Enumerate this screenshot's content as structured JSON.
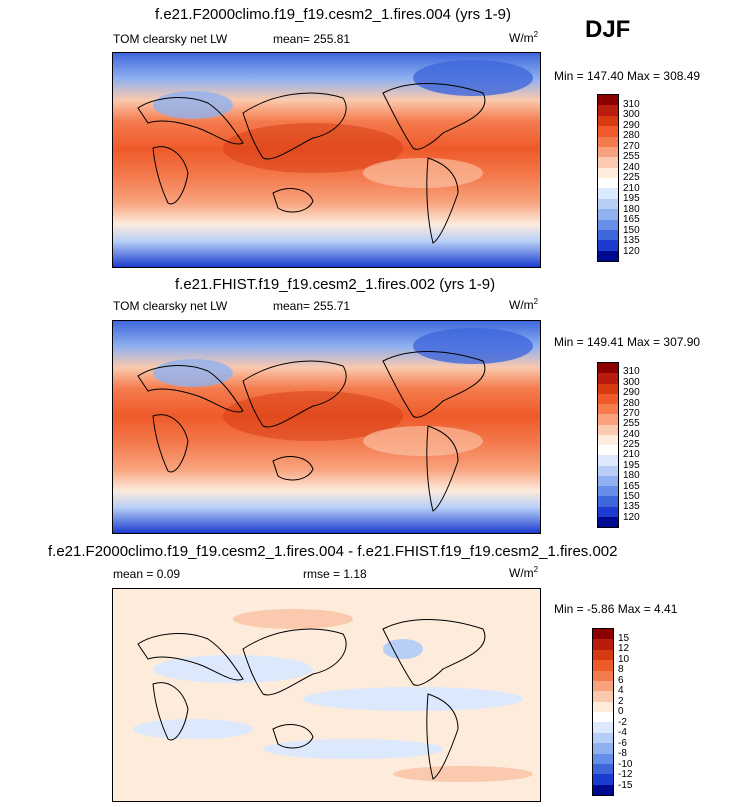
{
  "season": "DJF",
  "panels": [
    {
      "title": "f.e21.F2000climo.f19_f19.cesm2_1.fires.004 (yrs 1-9)",
      "left_label": "TOM clearsky net LW",
      "center_label": "mean= 255.81",
      "right_label": "W/m",
      "units_sup": "2",
      "minmax": "Min = 147.40 Max = 308.49"
    },
    {
      "title": "f.e21.FHIST.f19_f19.cesm2_1.fires.002 (yrs 1-9)",
      "left_label": "TOM clearsky net LW",
      "center_label": "mean= 255.71",
      "right_label": "W/m",
      "units_sup": "2",
      "minmax": "Min = 149.41 Max = 307.90"
    },
    {
      "title": "f.e21.F2000climo.f19_f19.cesm2_1.fires.004 - f.e21.FHIST.f19_f19.cesm2_1.fires.002",
      "left_label": "mean =   0.09",
      "center_label": "rmse =   1.18",
      "right_label": "W/m",
      "units_sup": "2",
      "minmax": "Min = -5.86 Max =  4.41"
    }
  ],
  "colorbars": {
    "absolute": {
      "levels": [
        "310",
        "300",
        "290",
        "280",
        "270",
        "255",
        "240",
        "225",
        "210",
        "195",
        "180",
        "165",
        "150",
        "135",
        "120"
      ],
      "colors": [
        "#8b0000",
        "#b71c0c",
        "#d63a12",
        "#ee5a2a",
        "#f47b4e",
        "#f8a37e",
        "#fbc9ad",
        "#fdebdc",
        "#ffffff",
        "#dce8fb",
        "#b7cff6",
        "#8fb1f0",
        "#658ee8",
        "#3f67dc",
        "#1c3ccf",
        "#000a8f"
      ]
    },
    "difference": {
      "levels": [
        "15",
        "12",
        "10",
        "8",
        "6",
        "4",
        "2",
        "0",
        "-2",
        "-4",
        "-6",
        "-8",
        "-10",
        "-12",
        "-15"
      ],
      "colors": [
        "#8b0000",
        "#b71c0c",
        "#d63a12",
        "#ee5a2a",
        "#f47b4e",
        "#f8a37e",
        "#fbc9ad",
        "#fdebdc",
        "#ffffff",
        "#dce8fb",
        "#b7cff6",
        "#8fb1f0",
        "#658ee8",
        "#3f67dc",
        "#1c3ccf",
        "#000a8f"
      ]
    }
  },
  "chart_data": [
    {
      "type": "heatmap",
      "title": "f.e21.F2000climo.f19_f19.cesm2_1.fires.004 (yrs 1-9)",
      "variable": "TOM clearsky net LW",
      "units": "W/m2",
      "mean": 255.81,
      "min": 147.4,
      "max": 308.49,
      "season": "DJF"
    },
    {
      "type": "heatmap",
      "title": "f.e21.FHIST.f19_f19.cesm2_1.fires.002 (yrs 1-9)",
      "variable": "TOM clearsky net LW",
      "units": "W/m2",
      "mean": 255.71,
      "min": 149.41,
      "max": 307.9,
      "season": "DJF"
    },
    {
      "type": "heatmap",
      "title": "f.e21.F2000climo.f19_f19.cesm2_1.fires.004 - f.e21.FHIST.f19_f19.cesm2_1.fires.002",
      "units": "W/m2",
      "mean": 0.09,
      "rmse": 1.18,
      "min": -5.86,
      "max": 4.41,
      "season": "DJF"
    }
  ]
}
